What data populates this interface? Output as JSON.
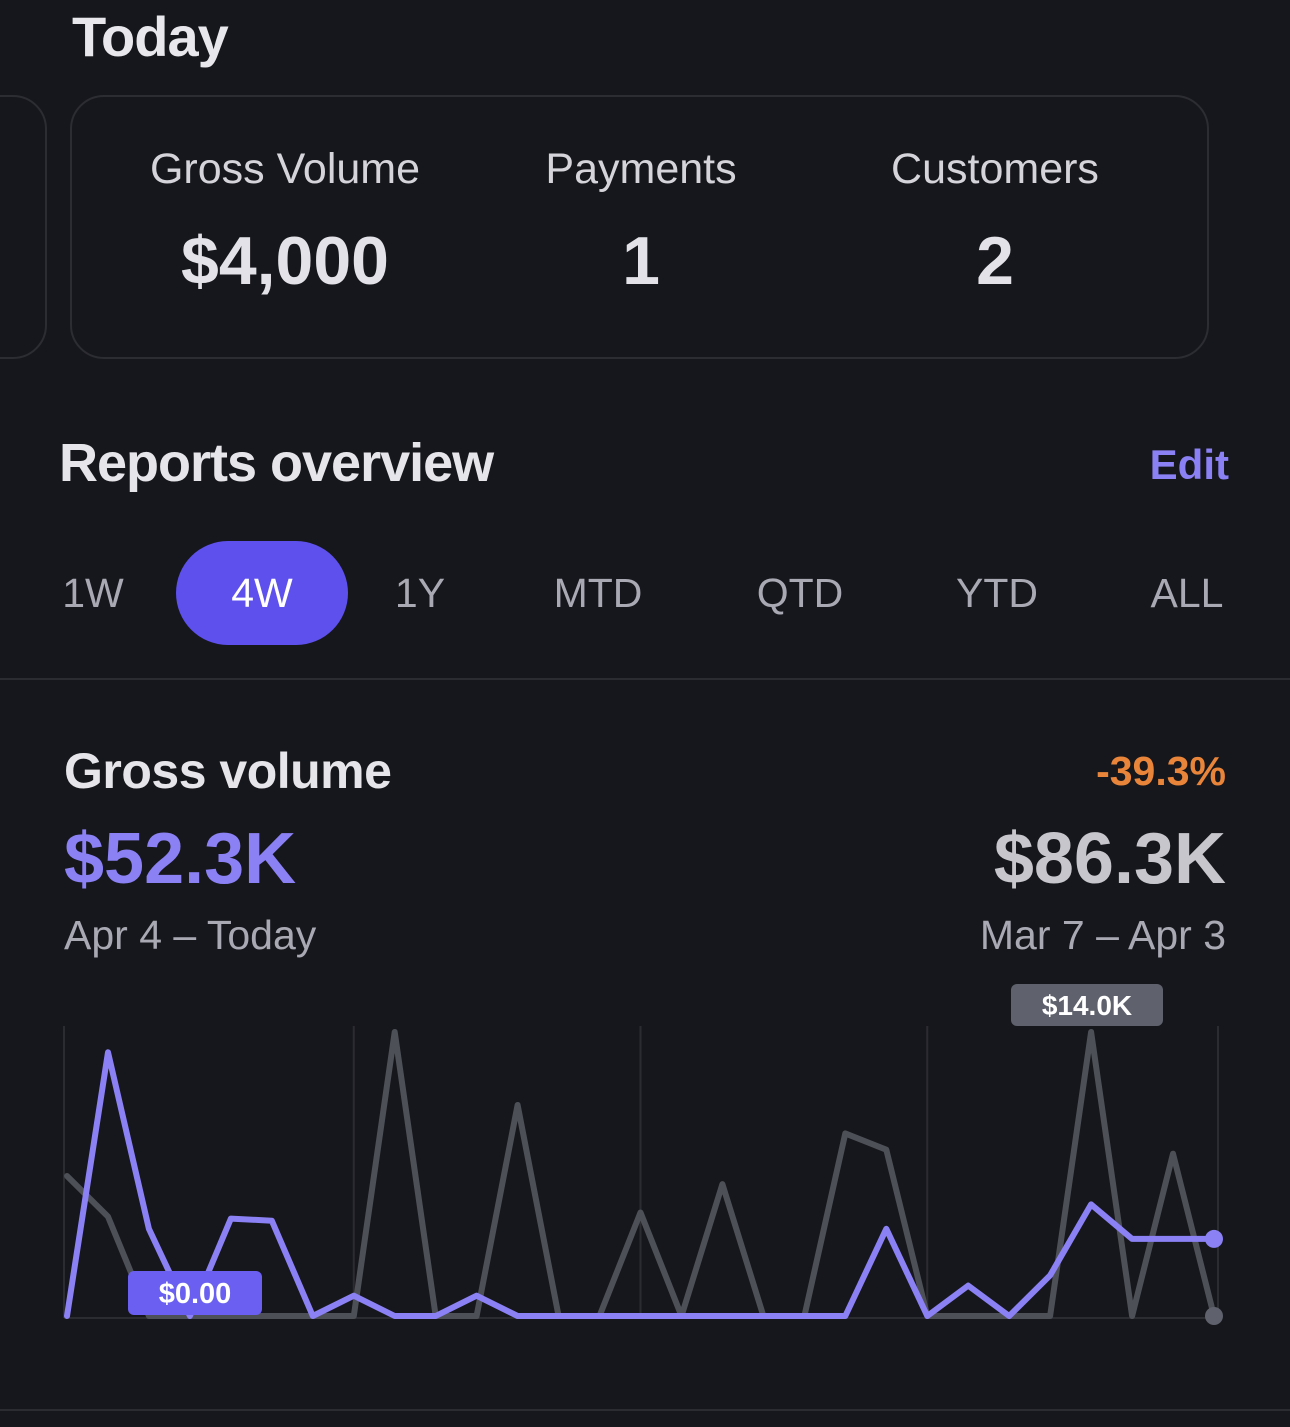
{
  "today": {
    "title": "Today",
    "stats": [
      {
        "label": "Gross Volume",
        "value": "$4,000"
      },
      {
        "label": "Payments",
        "value": "1"
      },
      {
        "label": "Customers",
        "value": "2"
      }
    ]
  },
  "reports": {
    "title": "Reports overview",
    "edit_label": "Edit",
    "ranges": [
      "1W",
      "4W",
      "1Y",
      "MTD",
      "QTD",
      "YTD",
      "ALL"
    ],
    "selected_range": "4W"
  },
  "gross_volume": {
    "title": "Gross volume",
    "change": "-39.3%",
    "current_value": "$52.3K",
    "current_range": "Apr 4 – Today",
    "previous_value": "$86.3K",
    "previous_range": "Mar 7 – Apr 3",
    "min_badge": "$0.00",
    "max_badge": "$14.0K"
  },
  "colors": {
    "accent": "#5d50ec",
    "current_series": "#8b81f5",
    "previous_series": "#4e5058",
    "negative_change": "#e8853a"
  },
  "chart_data": {
    "type": "line",
    "ylim": [
      0,
      14000
    ],
    "x": [
      1,
      2,
      3,
      4,
      5,
      6,
      7,
      8,
      9,
      10,
      11,
      12,
      13,
      14,
      15,
      16,
      17,
      18,
      19,
      20,
      21,
      22,
      23,
      24,
      25,
      26,
      27,
      28,
      29
    ],
    "series": [
      {
        "values": [
          0,
          13000,
          4300,
          0,
          4800,
          4700,
          0,
          1000,
          0,
          0,
          1000,
          0,
          0,
          0,
          0,
          0,
          0,
          0,
          0,
          0,
          4300,
          0,
          1500,
          0,
          2000,
          5500,
          3800,
          3800,
          3800
        ]
      },
      {
        "values": [
          6900,
          4900,
          0,
          0,
          0,
          0,
          0,
          0,
          14000,
          0,
          0,
          10400,
          0,
          0,
          5100,
          0,
          6500,
          0,
          0,
          9000,
          8200,
          0,
          0,
          0,
          0,
          14000,
          0,
          8000,
          0
        ]
      }
    ]
  }
}
